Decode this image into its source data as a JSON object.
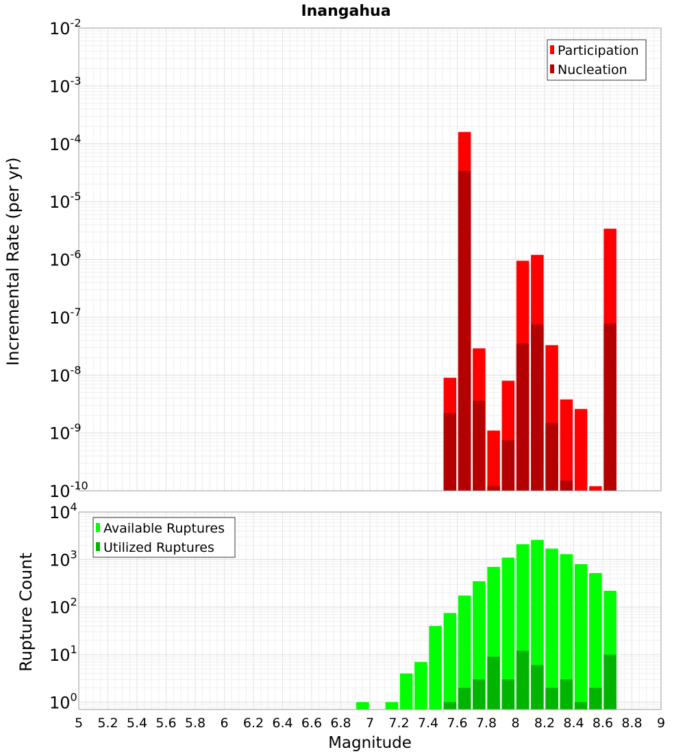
{
  "chart_data": [
    {
      "type": "bar",
      "title": "Inangahua",
      "ylabel": "Incremental Rate (per yr)",
      "yscale": "log",
      "ylim": [
        1e-10,
        0.01
      ],
      "xlim": [
        5,
        9
      ],
      "grid": true,
      "legend_position": "top-right",
      "y_tick_labels": [
        {
          "value": 0.01,
          "base": "10",
          "exp": "-2"
        },
        {
          "value": 0.001,
          "base": "10",
          "exp": "-3"
        },
        {
          "value": 0.0001,
          "base": "10",
          "exp": "-4"
        },
        {
          "value": 1e-05,
          "base": "10",
          "exp": "-5"
        },
        {
          "value": 1e-06,
          "base": "10",
          "exp": "-6"
        },
        {
          "value": 1e-07,
          "base": "10",
          "exp": "-7"
        },
        {
          "value": 1e-08,
          "base": "10",
          "exp": "-8"
        },
        {
          "value": 1e-09,
          "base": "10",
          "exp": "-9"
        },
        {
          "value": 1e-10,
          "base": "10",
          "exp": "-10"
        }
      ],
      "x": [
        7.55,
        7.65,
        7.75,
        7.85,
        7.95,
        8.05,
        8.15,
        8.25,
        8.35,
        8.45,
        8.55,
        8.65
      ],
      "series": [
        {
          "name": "Participation",
          "color": "#ff0000",
          "values": [
            9e-09,
            0.00016,
            2.9e-08,
            1.1e-09,
            8e-09,
            9.5e-07,
            1.2e-06,
            3.3e-08,
            3.8e-09,
            2.6e-09,
            1.2e-10,
            3.4e-06
          ]
        },
        {
          "name": "Nucleation",
          "color": "#b40000",
          "values": [
            2.2e-09,
            3.4e-05,
            3.6e-09,
            1.2e-10,
            7.5e-10,
            3.5e-08,
            7.5e-08,
            1.5e-09,
            1.5e-10,
            null,
            null,
            7.8e-08
          ]
        }
      ]
    },
    {
      "type": "bar",
      "title": "",
      "xlabel": "Magnitude",
      "ylabel": "Rupture Count",
      "yscale": "log",
      "ylim": [
        0.7,
        10000
      ],
      "xlim": [
        5,
        9
      ],
      "grid": true,
      "legend_position": "top-left",
      "x_tick_labels": [
        "5",
        "5.2",
        "5.4",
        "5.6",
        "5.8",
        "6",
        "6.2",
        "6.4",
        "6.6",
        "6.8",
        "7",
        "7.2",
        "7.4",
        "7.6",
        "7.8",
        "8",
        "8.2",
        "8.4",
        "8.6",
        "8.8",
        "9"
      ],
      "y_tick_labels": [
        {
          "value": 10000,
          "base": "10",
          "exp": "4"
        },
        {
          "value": 1000,
          "base": "10",
          "exp": "3"
        },
        {
          "value": 100,
          "base": "10",
          "exp": "2"
        },
        {
          "value": 10,
          "base": "10",
          "exp": "1"
        },
        {
          "value": 1,
          "base": "10",
          "exp": "0"
        }
      ],
      "x": [
        6.95,
        7.15,
        7.25,
        7.35,
        7.45,
        7.55,
        7.65,
        7.75,
        7.85,
        7.95,
        8.05,
        8.15,
        8.25,
        8.35,
        8.45,
        8.55,
        8.65
      ],
      "series": [
        {
          "name": "Available Ruptures",
          "color": "#00ff00",
          "values": [
            1,
            1,
            4,
            7,
            40,
            75,
            175,
            350,
            700,
            1100,
            2100,
            2600,
            1700,
            1300,
            800,
            520,
            220
          ]
        },
        {
          "name": "Utilized Ruptures",
          "color": "#00b400",
          "values": [
            null,
            null,
            null,
            null,
            null,
            1,
            2,
            3,
            9,
            3,
            12,
            6,
            2,
            3,
            1,
            2,
            10
          ]
        }
      ]
    }
  ]
}
